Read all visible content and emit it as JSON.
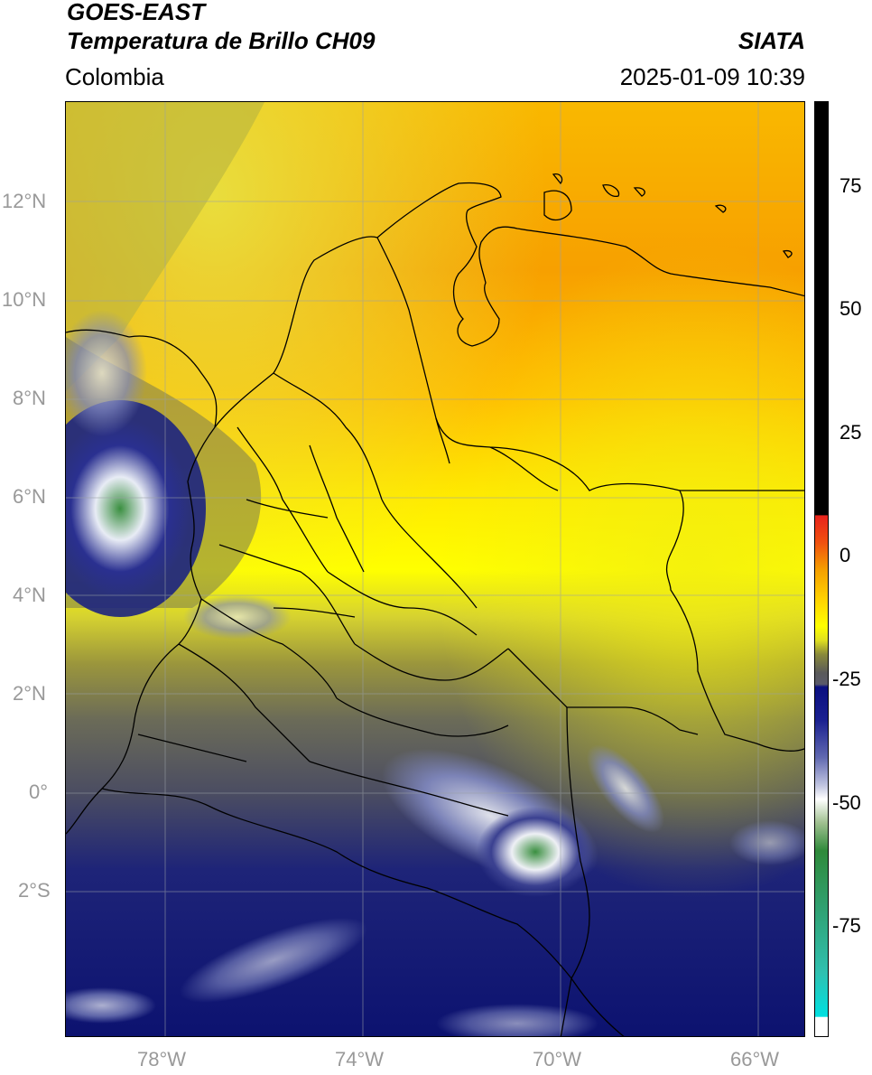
{
  "header": {
    "satellite": "GOES-EAST",
    "product": "Temperatura de Brillo CH09",
    "source": "SIATA",
    "region": "Colombia",
    "datetime": "2025-01-09 10:39"
  },
  "axes": {
    "lat_labels": [
      "12°N",
      "10°N",
      "8°N",
      "6°N",
      "4°N",
      "2°N",
      "0°",
      "2°S"
    ],
    "lon_labels": [
      "78°W",
      "74°W",
      "70°W",
      "66°W"
    ]
  },
  "colorbar": {
    "ticks": [
      "75",
      "50",
      "25",
      "0",
      "-25",
      "-50",
      "-75"
    ],
    "colors": {
      "black": "#000000",
      "red": "#e8231c",
      "orange": "#f5a000",
      "yellow": "#ffff00",
      "olive": "#8a8a3a",
      "gray": "#5a5a5a",
      "navy": "#0a0f80",
      "white": "#ffffff",
      "green": "#2f8a3a",
      "teal": "#30b0a0",
      "cyan": "#00e0e0"
    }
  },
  "map": {
    "background_colors": {
      "orange": "#f9a200",
      "yellow": "#ffef00",
      "olive": "#9b963c",
      "gray": "#6b6b58",
      "navy": "#121a78",
      "cloud_white": "#e8ecf5",
      "cloud_green": "#3a8f40"
    }
  }
}
